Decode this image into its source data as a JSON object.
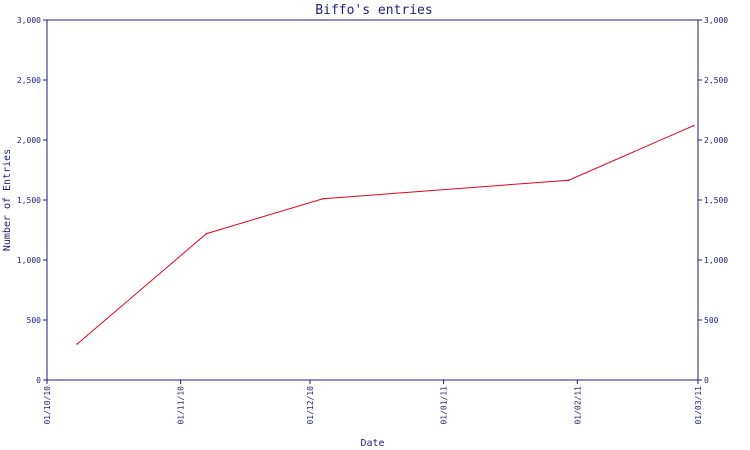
{
  "chart_data": {
    "type": "line",
    "title": "Biffo's entries",
    "xlabel": "Date",
    "ylabel": "Number of Entries",
    "x_ticks": [
      "01/10/10",
      "01/11/10",
      "01/12/10",
      "01/01/11",
      "01/02/11",
      "01/03/11"
    ],
    "x_tick_dates": [
      "2010-10-01",
      "2010-11-01",
      "2010-12-01",
      "2011-01-01",
      "2011-02-01",
      "2011-03-01"
    ],
    "xlim": [
      "2010-10-01",
      "2011-03-01"
    ],
    "ylim": [
      0,
      3000
    ],
    "y_ticks": [
      0,
      500,
      1000,
      1500,
      2000,
      2500,
      3000
    ],
    "y_tick_labels": [
      "0",
      "500",
      "1,000",
      "1,500",
      "2,000",
      "2,500",
      "3,000"
    ],
    "right_axis": true,
    "grid": false,
    "series": [
      {
        "color": "#e8001c",
        "x": [
          "2010-10-08",
          "2010-11-07",
          "2010-12-04",
          "2011-01-30",
          "2011-02-28"
        ],
        "y": [
          300,
          1220,
          1510,
          1665,
          2120
        ]
      }
    ]
  }
}
